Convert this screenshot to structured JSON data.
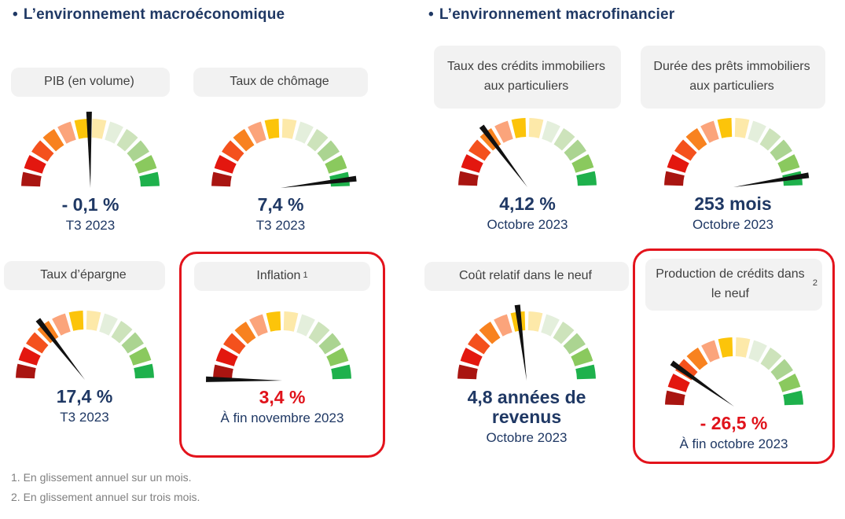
{
  "colors": {
    "navy": "#1f3864",
    "value_red": "#e0131b",
    "box_border": "#e3131c",
    "pill_bg": "#f2f2f2",
    "pill_text": "#404040",
    "footnote_gray": "#7f7f7f",
    "needle": "#111111"
  },
  "gauge_colors": [
    "#a91511",
    "#e3170f",
    "#f4511d",
    "#f8821f",
    "#fba47b",
    "#fcc40a",
    "#fde9a9",
    "#e4efdc",
    "#cde3bb",
    "#abd491",
    "#8ac95e",
    "#1eb14c"
  ],
  "sections": [
    {
      "bullet": "•",
      "title": "L’environnement macroéconomique",
      "cards": [
        {
          "label": "PIB (en volume)",
          "needle_deg": 91,
          "value": "- 0,1 %",
          "date": "T3 2023"
        },
        {
          "label": "Taux de chômage",
          "needle_deg": 7,
          "value": "7,4 %",
          "date": "T3 2023"
        },
        {
          "label": "Taux d’épargne",
          "needle_deg": 128,
          "value": "17,4 %",
          "date": "T3 2023"
        },
        {
          "label": "Inflation",
          "sup": "1",
          "needle_deg": 179,
          "value": "3,4 %",
          "date": "À fin novembre 2023",
          "value_red": true,
          "highlight": true
        }
      ]
    },
    {
      "bullet": "•",
      "title": "L’environnement macrofinancier",
      "cards": [
        {
          "label": "Taux des crédits immobiliers aux particuliers",
          "needle_deg": 127,
          "value": "4,12 %",
          "date": "Octobre 2023"
        },
        {
          "label": "Durée des prêts immobiliers aux particuliers",
          "needle_deg": 9,
          "value": "253 mois",
          "date": "Octobre 2023"
        },
        {
          "label": "Coût relatif dans le neuf",
          "needle_deg": 97,
          "value": "4,8 années de revenus",
          "date": "Octobre 2023"
        },
        {
          "label": "Production de crédits dans le neuf",
          "sup": "2",
          "needle_deg": 145,
          "value": "- 26,5 %",
          "date": "À fin octobre 2023",
          "value_red": true,
          "highlight": true
        }
      ]
    }
  ],
  "footnotes": [
    "1. En glissement annuel sur un mois.",
    "2. En glissement annuel sur trois mois."
  ],
  "chart_data": [
    {
      "type": "gauge",
      "title": "PIB (en volume)",
      "value": -0.1,
      "unit": "%",
      "value_label": "- 0,1 %",
      "period": "T3 2023",
      "needle_deg": 91,
      "scale": "semicircle 180°, 12 segments red(left) to green(right)"
    },
    {
      "type": "gauge",
      "title": "Taux de chômage",
      "value": 7.4,
      "unit": "%",
      "value_label": "7,4 %",
      "period": "T3 2023",
      "needle_deg": 7,
      "scale": "semicircle 180°, 12 segments red(left) to green(right)"
    },
    {
      "type": "gauge",
      "title": "Taux d’épargne",
      "value": 17.4,
      "unit": "%",
      "value_label": "17,4 %",
      "period": "T3 2023",
      "needle_deg": 128,
      "scale": "semicircle 180°, 12 segments red(left) to green(right)"
    },
    {
      "type": "gauge",
      "title": "Inflation (1)",
      "value": 3.4,
      "unit": "%",
      "value_label": "3,4 %",
      "period": "À fin novembre 2023",
      "needle_deg": 179,
      "highlighted": true,
      "scale": "semicircle 180°, 12 segments red(left) to green(right)"
    },
    {
      "type": "gauge",
      "title": "Taux des crédits immobiliers aux particuliers",
      "value": 4.12,
      "unit": "%",
      "value_label": "4,12 %",
      "period": "Octobre 2023",
      "needle_deg": 127,
      "scale": "semicircle 180°, 12 segments red(left) to green(right)"
    },
    {
      "type": "gauge",
      "title": "Durée des prêts immobiliers aux particuliers",
      "value": 253,
      "unit": "mois",
      "value_label": "253 mois",
      "period": "Octobre 2023",
      "needle_deg": 9,
      "scale": "semicircle 180°, 12 segments red(left) to green(right)"
    },
    {
      "type": "gauge",
      "title": "Coût relatif dans le neuf",
      "value": 4.8,
      "unit": "années de revenus",
      "value_label": "4,8 années de revenus",
      "period": "Octobre 2023",
      "needle_deg": 97,
      "scale": "semicircle 180°, 12 segments red(left) to green(right)"
    },
    {
      "type": "gauge",
      "title": "Production de crédits dans le neuf (2)",
      "value": -26.5,
      "unit": "%",
      "value_label": "- 26,5 %",
      "period": "À fin octobre 2023",
      "needle_deg": 145,
      "highlighted": true,
      "scale": "semicircle 180°, 12 segments red(left) to green(right)"
    }
  ]
}
